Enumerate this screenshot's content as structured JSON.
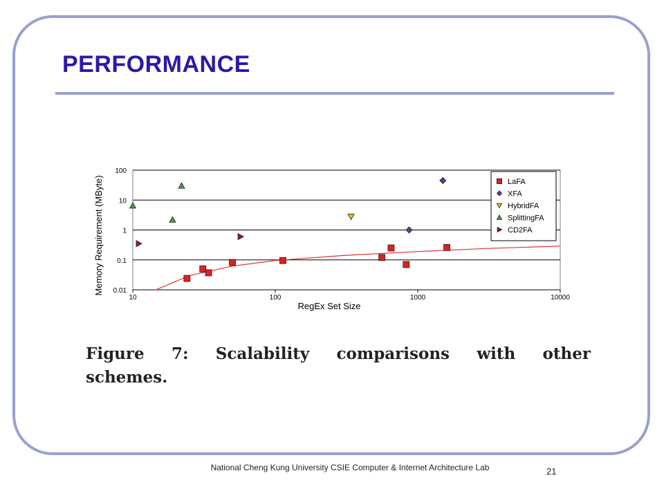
{
  "slide": {
    "title": "PERFORMANCE",
    "caption": {
      "words": [
        "Figure",
        "7:",
        "Scalability",
        "comparisons",
        "with",
        "other"
      ],
      "line2": "schemes."
    },
    "footer": "National Cheng Kung University CSIE Computer & Internet Architecture Lab",
    "page_number": "21"
  },
  "colors": {
    "title": "#2a1aa8",
    "frame": "#9aa0d0",
    "trend": "#e03030"
  },
  "chart_data": {
    "type": "scatter",
    "x_scale": "log",
    "y_scale": "log",
    "xlabel": "RegEx Set Size",
    "ylabel": "Memory Requirement (MByte)",
    "xlim": [
      10,
      10000
    ],
    "ylim": [
      0.01,
      100
    ],
    "x_ticks": [
      "10",
      "100",
      "1000",
      "10000"
    ],
    "y_ticks": [
      "100",
      "10",
      "1",
      "0.1",
      "0.01"
    ],
    "grid": "horizontal",
    "legend_position": "top-right",
    "series": [
      {
        "name": "LaFA",
        "marker": "square",
        "color": "#e02020",
        "points": [
          [
            24,
            0.024
          ],
          [
            31,
            0.05
          ],
          [
            34,
            0.037
          ],
          [
            50,
            0.082
          ],
          [
            113,
            0.095
          ],
          [
            560,
            0.12
          ],
          [
            650,
            0.25
          ],
          [
            830,
            0.07
          ],
          [
            1600,
            0.26
          ]
        ]
      },
      {
        "name": "XFA",
        "marker": "diamond",
        "color": "#5a3c9a",
        "points": [
          [
            870,
            1.0
          ],
          [
            1500,
            45
          ]
        ]
      },
      {
        "name": "HybridFA",
        "marker": "triangle-down",
        "color": "#e0c020",
        "points": [
          [
            340,
            2.8
          ]
        ]
      },
      {
        "name": "SplittingFA",
        "marker": "triangle-up",
        "color": "#40a040",
        "points": [
          [
            10,
            6.5
          ],
          [
            19,
            2.2
          ],
          [
            22,
            30
          ]
        ]
      },
      {
        "name": "CD2FA",
        "marker": "triangle-right",
        "color": "#8a1a3a",
        "points": [
          [
            11,
            0.35
          ],
          [
            57,
            0.6
          ]
        ]
      }
    ],
    "trend": {
      "color": "#e03030",
      "points": [
        [
          14.5,
          0.01
        ],
        [
          25,
          0.03
        ],
        [
          50,
          0.062
        ],
        [
          100,
          0.095
        ],
        [
          300,
          0.14
        ],
        [
          1000,
          0.19
        ],
        [
          3000,
          0.24
        ],
        [
          10000,
          0.29
        ]
      ]
    }
  }
}
